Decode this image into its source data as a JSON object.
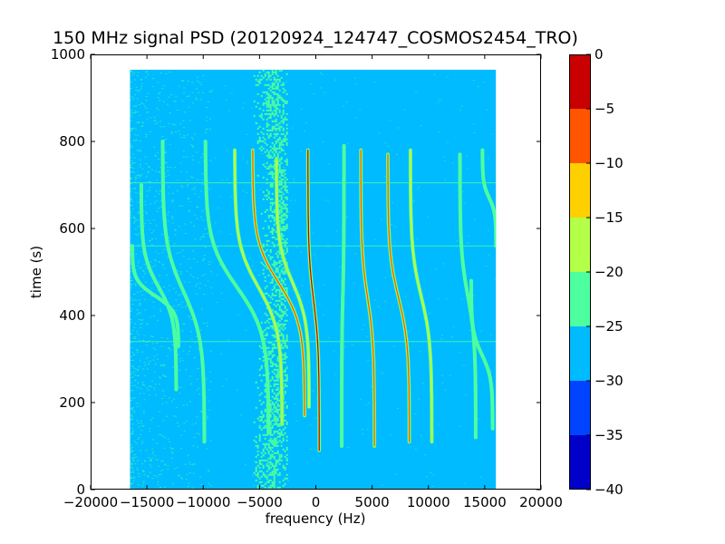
{
  "chart_data": {
    "type": "heatmap",
    "title": "150 MHz signal PSD (20120924_124747_COSMOS2454_TRO)",
    "xlabel": "frequency (Hz)",
    "ylabel": "time (s)",
    "xlim": [
      -20000,
      20000
    ],
    "ylim": [
      0,
      1000
    ],
    "x_ticks": [
      "−20000",
      "−15000",
      "−10000",
      "−5000",
      "0",
      "5000",
      "10000",
      "15000",
      "20000"
    ],
    "y_ticks": [
      "0",
      "200",
      "400",
      "600",
      "800",
      "1000"
    ],
    "data_extent": {
      "freq": [
        -16500,
        16000
      ],
      "time": [
        0,
        965
      ]
    },
    "background_level": -27.5,
    "colorbar": {
      "range": [
        -40,
        0
      ],
      "ticks": [
        "0",
        "−5",
        "−10",
        "−15",
        "−20",
        "−25",
        "−30",
        "−35",
        "−40"
      ],
      "levels": [
        {
          "min": -40,
          "max": -35,
          "color": "#0000c8"
        },
        {
          "min": -35,
          "max": -30,
          "color": "#0044ff"
        },
        {
          "min": -30,
          "max": -25,
          "color": "#00bbff"
        },
        {
          "min": -25,
          "max": -20,
          "color": "#4dff9e"
        },
        {
          "min": -20,
          "max": -15,
          "color": "#b4ff48"
        },
        {
          "min": -15,
          "max": -10,
          "color": "#ffd000"
        },
        {
          "min": -10,
          "max": -5,
          "color": "#ff5500"
        },
        {
          "min": -5,
          "max": 0,
          "color": "#c80000"
        }
      ]
    },
    "doppler_tracks": [
      {
        "time": [
          330,
          560
        ],
        "freq": [
          -12200,
          -16300
        ],
        "peak": -22
      },
      {
        "time": [
          230,
          700
        ],
        "freq": [
          -12400,
          -15500
        ],
        "peak": -22
      },
      {
        "time": [
          110,
          800
        ],
        "freq": [
          -9900,
          -13600
        ],
        "peak": -22
      },
      {
        "time": [
          130,
          800
        ],
        "freq": [
          -4200,
          -9800
        ],
        "peak": -22
      },
      {
        "time": [
          150,
          780
        ],
        "freq": [
          -3000,
          -7200
        ],
        "peak": -15
      },
      {
        "time": [
          170,
          780
        ],
        "freq": [
          -1000,
          -5600
        ],
        "peak": -10
      },
      {
        "time": [
          190,
          760
        ],
        "freq": [
          -600,
          -3500
        ],
        "peak": -17
      },
      {
        "time": [
          90,
          780
        ],
        "freq": [
          300,
          -700
        ],
        "peak": -5
      },
      {
        "time": [
          100,
          790
        ],
        "freq": [
          2300,
          2500
        ],
        "peak": -20
      },
      {
        "time": [
          100,
          780
        ],
        "freq": [
          5200,
          4000
        ],
        "peak": -8
      },
      {
        "time": [
          110,
          770
        ],
        "freq": [
          8300,
          6400
        ],
        "peak": -10
      },
      {
        "time": [
          110,
          780
        ],
        "freq": [
          10300,
          8400
        ],
        "peak": -17
      },
      {
        "time": [
          120,
          770
        ],
        "freq": [
          14200,
          12800
        ],
        "peak": -20
      },
      {
        "time": [
          560,
          780
        ],
        "freq": [
          16000,
          14800
        ],
        "peak": -22
      },
      {
        "time": [
          140,
          480
        ],
        "freq": [
          15700,
          13800
        ],
        "peak": -22
      }
    ],
    "noise_band": {
      "time": [
        0,
        965
      ],
      "freq": [
        -5700,
        -2500
      ],
      "level": -23
    },
    "horizontal_artifacts": [
      {
        "time": 340,
        "level": -23
      },
      {
        "time": 560,
        "level": -23
      },
      {
        "time": 705,
        "level": -23
      }
    ]
  }
}
